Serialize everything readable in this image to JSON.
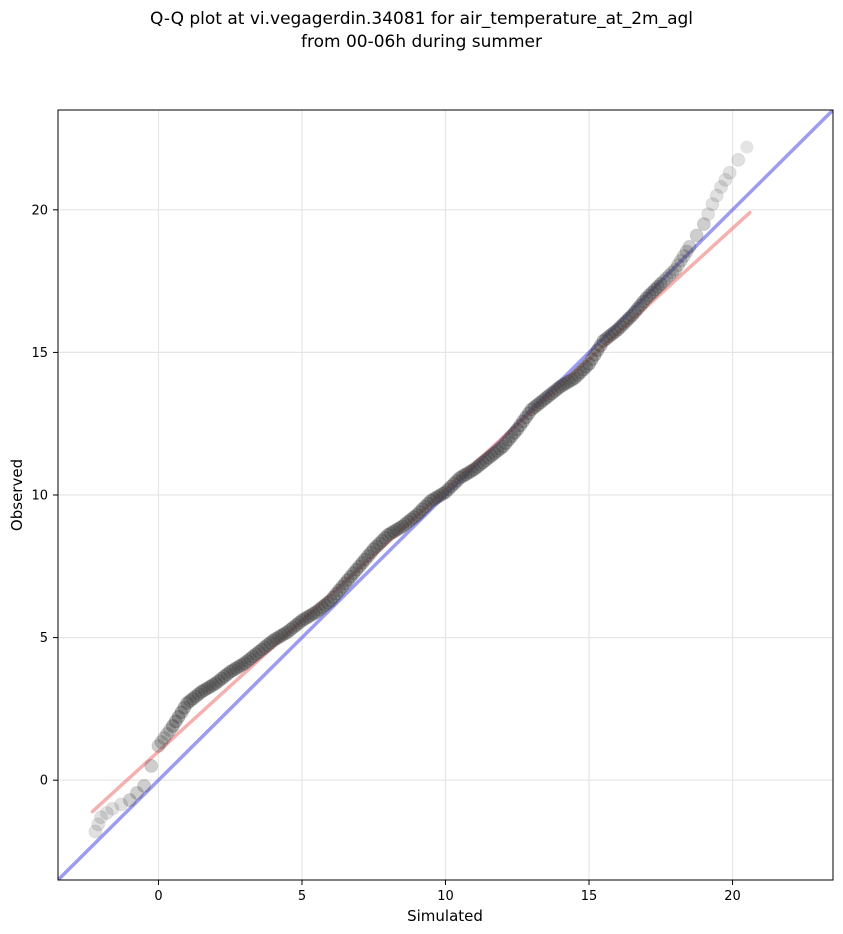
{
  "chart_data": {
    "type": "scatter",
    "title": "Q-Q plot at vi.vegagerdin.34081 for air_temperature_at_2m_agl",
    "subtitle": "from 00-06h during summer",
    "xlabel": "Simulated",
    "ylabel": "Observed",
    "xlim": [
      -3.5,
      23.5
    ],
    "ylim": [
      -3.5,
      23.5
    ],
    "xticks": [
      0,
      5,
      10,
      15,
      20
    ],
    "yticks": [
      0,
      5,
      10,
      15,
      20
    ],
    "grid": true,
    "reference_line": {
      "name": "",
      "color": "#5a5ae8",
      "x": [
        -3.5,
        23.5
      ],
      "y": [
        -3.5,
        23.5
      ]
    },
    "fit_line": {
      "name": "",
      "color": "#ef7b7b",
      "x": [
        -2.3,
        20.6
      ],
      "y": [
        -1.1,
        19.9
      ]
    },
    "quantile_curve": {
      "x": [
        -2.2,
        -2.0,
        -1.6,
        -1.0,
        -0.5,
        0.0,
        0.5,
        1.0,
        1.5,
        2.0,
        2.5,
        3.0,
        3.5,
        4.0,
        4.5,
        5.0,
        5.5,
        6.0,
        6.5,
        7.0,
        7.5,
        8.0,
        8.5,
        9.0,
        9.5,
        10.0,
        10.5,
        11.0,
        11.5,
        12.0,
        12.5,
        13.0,
        13.5,
        14.0,
        14.5,
        15.0,
        15.5,
        16.0,
        16.5,
        17.0,
        17.5,
        18.0,
        18.5,
        19.0,
        19.3,
        19.6,
        19.9,
        20.5
      ],
      "y": [
        -1.8,
        -1.3,
        -1.0,
        -0.7,
        -0.2,
        1.2,
        1.9,
        2.7,
        3.1,
        3.4,
        3.8,
        4.1,
        4.5,
        4.9,
        5.2,
        5.6,
        5.9,
        6.3,
        6.9,
        7.5,
        8.1,
        8.6,
        8.9,
        9.3,
        9.8,
        10.1,
        10.6,
        10.9,
        11.3,
        11.7,
        12.3,
        13.0,
        13.4,
        13.8,
        14.1,
        14.6,
        15.4,
        15.8,
        16.3,
        16.9,
        17.4,
        17.9,
        18.7,
        19.5,
        20.2,
        20.8,
        21.3,
        22.2
      ]
    }
  }
}
